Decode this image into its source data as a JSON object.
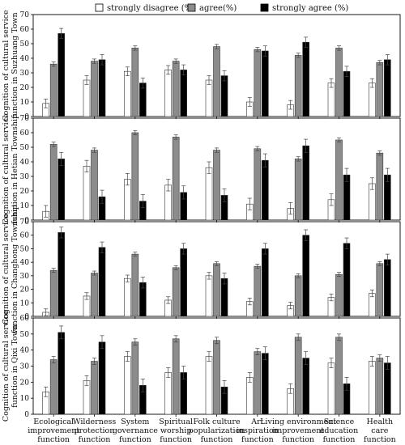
{
  "chart_data": {
    "type": "bar",
    "legend": {
      "placement": "top",
      "entries": [
        "strongly disagree (%)",
        "agree(%)",
        "strongly agree (%)"
      ]
    },
    "colors": {
      "strongly_disagree": "#ffffff",
      "agree": "#8c8c8c",
      "strongly_agree": "#000000",
      "axis": "#000000"
    },
    "categories": [
      [
        "Ecological",
        "improvement",
        "function"
      ],
      [
        "Wilderness",
        "protection",
        "function"
      ],
      [
        "System",
        "governance",
        "function"
      ],
      [
        "Spiritual",
        "worship",
        "function"
      ],
      [
        "Folk culture",
        "popularization",
        "function"
      ],
      [
        "Art",
        "inspiration",
        "function"
      ],
      [
        "Living environment",
        "improvement",
        "function"
      ],
      [
        "Science",
        "education",
        "function"
      ],
      [
        "Health",
        "care",
        "function"
      ]
    ],
    "panels": [
      {
        "ylabel": [
          "Cognition of cultural service",
          "function in Suzhuang Town"
        ],
        "ylim": [
          0,
          70
        ],
        "yticks": [
          0,
          10,
          20,
          30,
          40,
          50,
          60,
          70
        ],
        "series": [
          {
            "key": "strongly_disagree",
            "values": [
              9,
              25,
              31,
              32,
              25,
              10,
              8,
              23,
              23
            ],
            "errors": [
              3,
              3,
              3,
              3,
              3,
              3,
              3,
              3,
              3
            ]
          },
          {
            "key": "agree",
            "values": [
              36,
              38,
              47,
              38,
              48,
              46,
              42,
              47,
              37
            ],
            "errors": [
              1.5,
              1.5,
              1.5,
              1.5,
              1.5,
              1.5,
              1.5,
              1.5,
              1.5
            ]
          },
          {
            "key": "strongly_agree",
            "values": [
              57,
              39,
              23,
              32,
              28,
              45,
              51,
              31,
              39
            ],
            "errors": [
              3.5,
              3.5,
              3.5,
              3.5,
              3.5,
              3.5,
              3.5,
              3.5,
              3.5
            ]
          }
        ]
      },
      {
        "ylabel": [
          "Cognition of cultural service",
          "function in Hetian Township"
        ],
        "ylim": [
          0,
          70
        ],
        "yticks": [
          0,
          10,
          20,
          30,
          40,
          50,
          60,
          70
        ],
        "series": [
          {
            "key": "strongly_disagree",
            "values": [
              6,
              37,
              28,
              24,
              36,
              11,
              8,
              14,
              25
            ],
            "errors": [
              4,
              4,
              4,
              4,
              4,
              4,
              4,
              4,
              4
            ]
          },
          {
            "key": "agree",
            "values": [
              52,
              48,
              60,
              57,
              48,
              49,
              42,
              55,
              46
            ],
            "errors": [
              1.5,
              1.5,
              1.5,
              1.5,
              1.5,
              1.5,
              1.5,
              1.5,
              1.5
            ]
          },
          {
            "key": "strongly_agree",
            "values": [
              42,
              16,
              13,
              19,
              17,
              41,
              51,
              31,
              31
            ],
            "errors": [
              4.5,
              4.5,
              4.5,
              4.5,
              4.5,
              4.5,
              4.5,
              4.5,
              4.5
            ]
          }
        ]
      },
      {
        "ylabel": [
          "Cognition of cultural service",
          "function in Changhong Township"
        ],
        "ylim": [
          0,
          70
        ],
        "yticks": [
          0,
          10,
          20,
          30,
          40,
          50,
          60,
          70
        ],
        "series": [
          {
            "key": "strongly_disagree",
            "values": [
              3,
              15,
              28,
              12,
              30,
              11,
              8,
              14,
              17
            ],
            "errors": [
              2.5,
              2.5,
              2.5,
              2.5,
              2.5,
              2.5,
              2.5,
              2.5,
              2.5
            ]
          },
          {
            "key": "agree",
            "values": [
              34,
              32,
              46,
              36,
              39,
              37,
              30,
              31,
              39
            ],
            "errors": [
              1.5,
              1.5,
              1.5,
              1.5,
              1.5,
              1.5,
              1.5,
              1.5,
              1.5
            ]
          },
          {
            "key": "strongly_agree",
            "values": [
              62,
              51,
              25,
              50,
              28,
              50,
              60,
              54,
              42
            ],
            "errors": [
              4,
              4,
              4,
              4,
              4,
              4,
              4,
              4,
              4
            ]
          }
        ]
      },
      {
        "ylabel": [
          "Cognition of cultural service",
          "function in Qixi Town"
        ],
        "ylim": [
          0,
          60
        ],
        "yticks": [
          0,
          10,
          20,
          30,
          40,
          50,
          60
        ],
        "series": [
          {
            "key": "strongly_disagree",
            "values": [
              14,
              21,
              36,
              26,
              36,
              23,
              16,
              32,
              33
            ],
            "errors": [
              3,
              3,
              3,
              3,
              3,
              3,
              3,
              3,
              3
            ]
          },
          {
            "key": "agree",
            "values": [
              34,
              33,
              45,
              47,
              46,
              39,
              48,
              48,
              35
            ],
            "errors": [
              2,
              2,
              2,
              2,
              2,
              2,
              2,
              2,
              2
            ]
          },
          {
            "key": "strongly_agree",
            "values": [
              51,
              45,
              18,
              26,
              17,
              38,
              35,
              19,
              32
            ],
            "errors": [
              4,
              4,
              4,
              4,
              4,
              4,
              4,
              4,
              4
            ]
          }
        ]
      }
    ]
  }
}
